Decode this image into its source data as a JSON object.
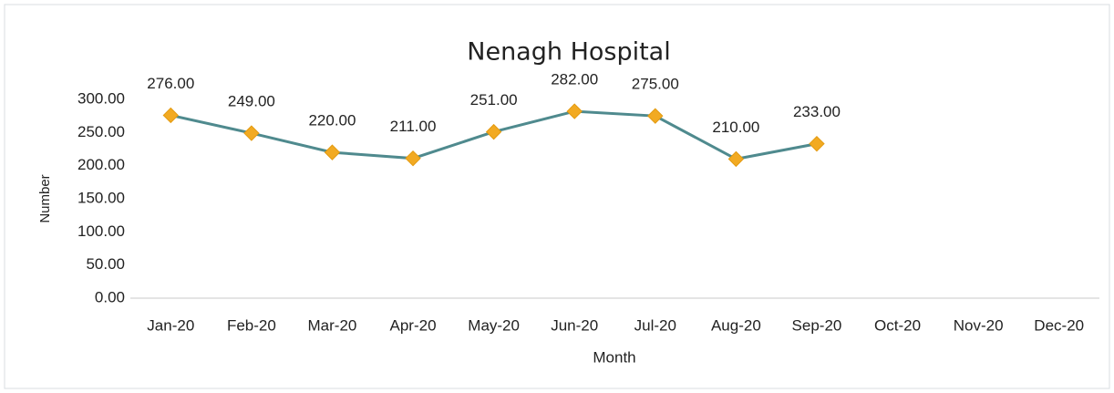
{
  "chart_data": {
    "type": "line",
    "title": "Nenagh Hospital",
    "x_label": "Month",
    "y_label": "Number",
    "categories": [
      "Jan-20",
      "Feb-20",
      "Mar-20",
      "Apr-20",
      "May-20",
      "Jun-20",
      "Jul-20",
      "Aug-20",
      "Sep-20",
      "Oct-20",
      "Nov-20",
      "Dec-20"
    ],
    "series": [
      {
        "name": "Number",
        "color": "#4f8a8e",
        "marker_color": "#f2aa22",
        "values": [
          276,
          249,
          220,
          211,
          251,
          282,
          275,
          210,
          233,
          null,
          null,
          null
        ],
        "value_labels": [
          "276.00",
          "249.00",
          "220.00",
          "211.00",
          "251.00",
          "282.00",
          "275.00",
          "210.00",
          "233.00",
          null,
          null,
          null
        ]
      }
    ],
    "ylim": [
      0,
      300
    ],
    "yticks": [
      {
        "value": 0,
        "label": "0.00"
      },
      {
        "value": 50,
        "label": "50.00"
      },
      {
        "value": 100,
        "label": "100.00"
      },
      {
        "value": 150,
        "label": "150.00"
      },
      {
        "value": 200,
        "label": "200.00"
      },
      {
        "value": 250,
        "label": "250.00"
      },
      {
        "value": 300,
        "label": "300.00"
      }
    ],
    "grid": false,
    "legend": false
  }
}
